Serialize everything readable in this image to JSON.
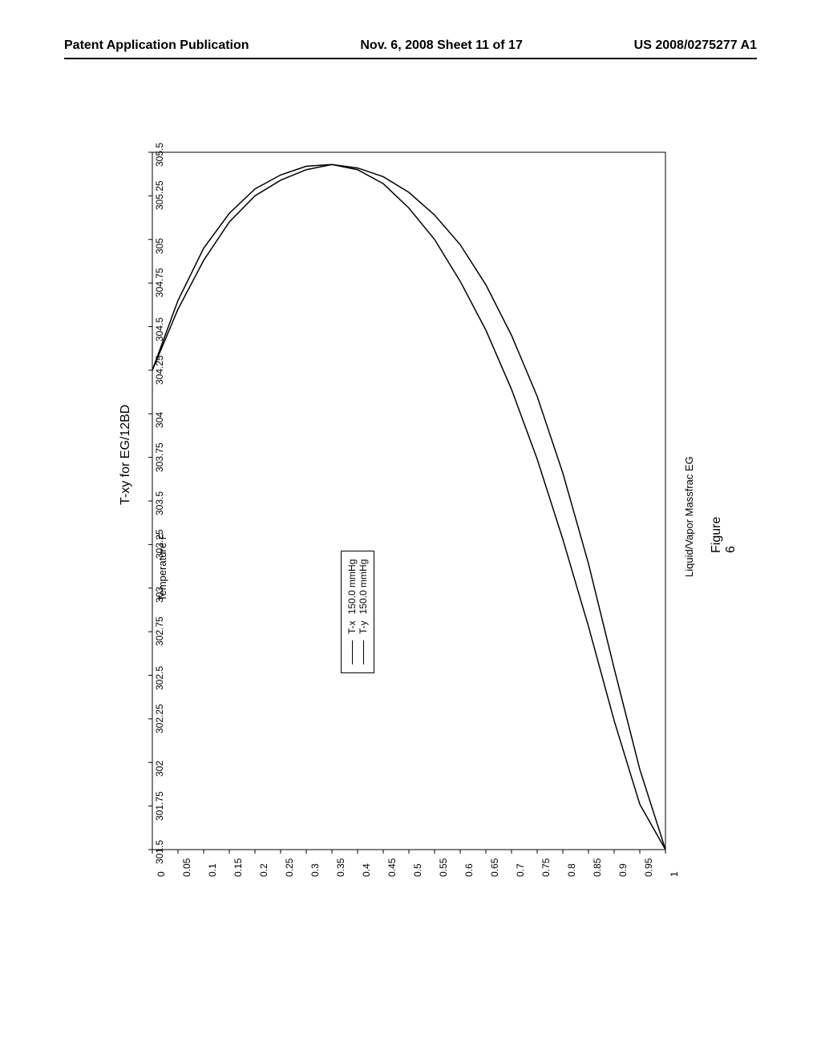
{
  "header": {
    "left": "Patent Application Publication",
    "middle": "Nov. 6, 2008  Sheet 11 of 17",
    "right": "US 2008/0275277 A1"
  },
  "figure_caption": "Figure 6",
  "chart": {
    "type": "txy-phase-diagram",
    "title": "T-xy for EG/12BD",
    "xlabel": "Liquid/Vapor Massfrac EG",
    "ylabel": "Temperature F",
    "xlim": [
      0,
      1
    ],
    "ylim": [
      301.5,
      305.5
    ],
    "xticks": [
      0,
      0.05,
      0.1,
      0.15,
      0.2,
      0.25,
      0.3,
      0.35,
      0.4,
      0.45,
      0.5,
      0.55,
      0.6,
      0.65,
      0.7,
      0.75,
      0.8,
      0.85,
      0.9,
      0.95,
      1
    ],
    "yticks": [
      301.5,
      301.75,
      302,
      302.25,
      302.5,
      302.75,
      303,
      303.25,
      303.5,
      303.75,
      304,
      304.25,
      304.5,
      304.75,
      305,
      305.25,
      305.5
    ],
    "background_color": "#ffffff",
    "axis_color": "#000000",
    "curve_color": "#000000",
    "curve_width": 1.5,
    "legend": {
      "entries": [
        {
          "label": "T-x",
          "condition": "150.0 mmHg"
        },
        {
          "label": "T-y",
          "condition": "150.0 mmHg"
        }
      ]
    },
    "series_tx": [
      {
        "x": 0.0,
        "y": 304.25
      },
      {
        "x": 0.05,
        "y": 304.65
      },
      {
        "x": 0.1,
        "y": 304.95
      },
      {
        "x": 0.15,
        "y": 305.15
      },
      {
        "x": 0.2,
        "y": 305.29
      },
      {
        "x": 0.25,
        "y": 305.37
      },
      {
        "x": 0.3,
        "y": 305.42
      },
      {
        "x": 0.35,
        "y": 305.43
      },
      {
        "x": 0.4,
        "y": 305.4
      },
      {
        "x": 0.45,
        "y": 305.32
      },
      {
        "x": 0.5,
        "y": 305.18
      },
      {
        "x": 0.55,
        "y": 305.0
      },
      {
        "x": 0.6,
        "y": 304.76
      },
      {
        "x": 0.65,
        "y": 304.48
      },
      {
        "x": 0.7,
        "y": 304.14
      },
      {
        "x": 0.75,
        "y": 303.74
      },
      {
        "x": 0.8,
        "y": 303.28
      },
      {
        "x": 0.85,
        "y": 302.78
      },
      {
        "x": 0.9,
        "y": 302.24
      },
      {
        "x": 0.95,
        "y": 301.76
      },
      {
        "x": 1.0,
        "y": 301.5
      }
    ],
    "series_ty": [
      {
        "x": 0.0,
        "y": 304.25
      },
      {
        "x": 0.05,
        "y": 304.6
      },
      {
        "x": 0.1,
        "y": 304.88
      },
      {
        "x": 0.15,
        "y": 305.1
      },
      {
        "x": 0.2,
        "y": 305.25
      },
      {
        "x": 0.25,
        "y": 305.34
      },
      {
        "x": 0.3,
        "y": 305.4
      },
      {
        "x": 0.35,
        "y": 305.43
      },
      {
        "x": 0.4,
        "y": 305.41
      },
      {
        "x": 0.45,
        "y": 305.36
      },
      {
        "x": 0.5,
        "y": 305.27
      },
      {
        "x": 0.55,
        "y": 305.14
      },
      {
        "x": 0.6,
        "y": 304.97
      },
      {
        "x": 0.65,
        "y": 304.74
      },
      {
        "x": 0.7,
        "y": 304.45
      },
      {
        "x": 0.75,
        "y": 304.1
      },
      {
        "x": 0.8,
        "y": 303.66
      },
      {
        "x": 0.85,
        "y": 303.14
      },
      {
        "x": 0.9,
        "y": 302.54
      },
      {
        "x": 0.95,
        "y": 301.96
      },
      {
        "x": 1.0,
        "y": 301.5
      }
    ]
  }
}
